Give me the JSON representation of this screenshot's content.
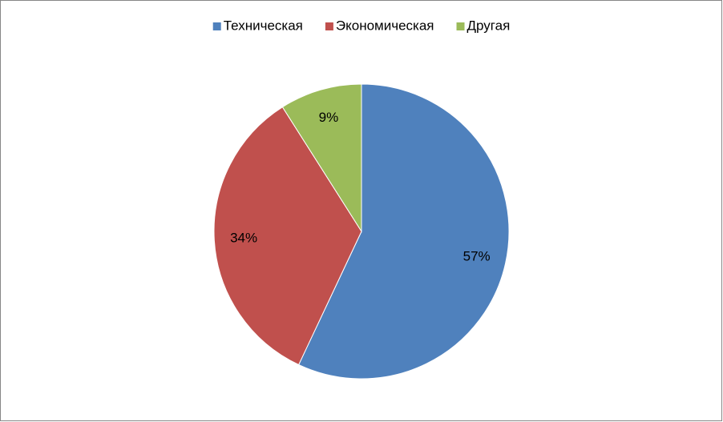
{
  "chart_data": {
    "type": "pie",
    "categories": [
      "Техническая",
      "Экономическая",
      "Другая"
    ],
    "values": [
      57,
      34,
      9
    ],
    "value_labels": [
      "57%",
      "34%",
      "9%"
    ],
    "colors": [
      "#4f81bd",
      "#c0504d",
      "#9bbb59"
    ],
    "legend": "top"
  }
}
